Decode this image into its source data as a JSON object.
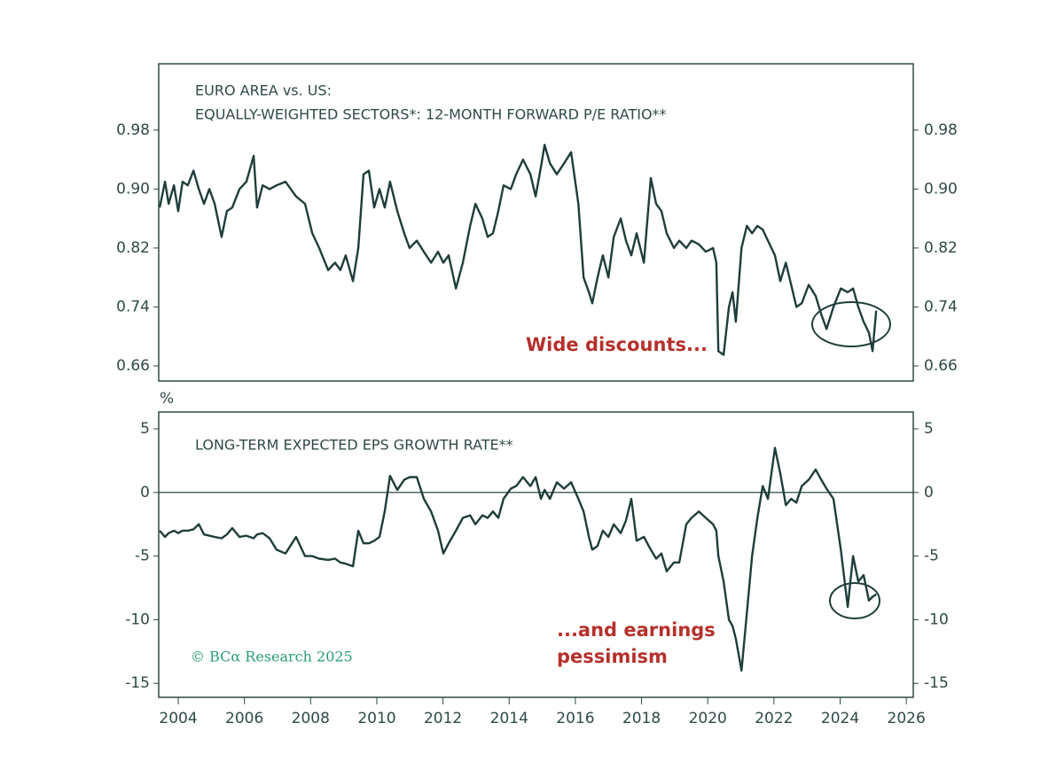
{
  "chart_data": [
    {
      "type": "line",
      "title": [
        "EURO AREA vs. US:",
        "EQUALLY-WEIGHTED SECTORS*: 12-MONTH FORWARD P/E RATIO**"
      ],
      "annotations": [
        "Wide discounts..."
      ],
      "x": [
        2003.44,
        2003.6,
        2003.71,
        2003.87,
        2004.0,
        2004.13,
        2004.29,
        2004.46,
        2004.62,
        2004.78,
        2004.94,
        2005.1,
        2005.31,
        2005.47,
        2005.63,
        2005.85,
        2006.06,
        2006.28,
        2006.38,
        2006.55,
        2006.76,
        2006.97,
        2007.24,
        2007.56,
        2007.83,
        2008.05,
        2008.26,
        2008.53,
        2008.74,
        2008.9,
        2009.06,
        2009.28,
        2009.44,
        2009.6,
        2009.76,
        2009.92,
        2010.08,
        2010.24,
        2010.4,
        2010.62,
        2010.83,
        2010.99,
        2011.21,
        2011.42,
        2011.64,
        2011.85,
        2012.01,
        2012.17,
        2012.39,
        2012.6,
        2012.82,
        2012.98,
        2013.19,
        2013.35,
        2013.51,
        2013.67,
        2013.83,
        2014.05,
        2014.21,
        2014.42,
        2014.64,
        2014.8,
        2014.96,
        2015.07,
        2015.23,
        2015.44,
        2015.66,
        2015.87,
        2016.09,
        2016.25,
        2016.41,
        2016.51,
        2016.67,
        2016.83,
        2017.0,
        2017.16,
        2017.37,
        2017.53,
        2017.69,
        2017.85,
        2018.07,
        2018.28,
        2018.44,
        2018.6,
        2018.76,
        2018.98,
        2019.14,
        2019.35,
        2019.51,
        2019.73,
        2019.94,
        2020.16,
        2020.26,
        2020.32,
        2020.48,
        2020.64,
        2020.75,
        2020.85,
        2021.02,
        2021.18,
        2021.34,
        2021.5,
        2021.66,
        2021.82,
        2022.03,
        2022.19,
        2022.36,
        2022.52,
        2022.68,
        2022.84,
        2023.05,
        2023.26,
        2023.43,
        2023.59,
        2023.8,
        2024.02,
        2024.23,
        2024.39,
        2024.55,
        2024.71,
        2024.87,
        2024.98,
        2025.09
      ],
      "series": [
        {
          "color": "#1f3d3a",
          "values": [
            0.875,
            0.91,
            0.88,
            0.905,
            0.87,
            0.91,
            0.905,
            0.925,
            0.9,
            0.88,
            0.9,
            0.88,
            0.835,
            0.87,
            0.875,
            0.9,
            0.91,
            0.945,
            0.875,
            0.905,
            0.9,
            0.905,
            0.91,
            0.89,
            0.88,
            0.84,
            0.82,
            0.79,
            0.8,
            0.79,
            0.81,
            0.775,
            0.82,
            0.92,
            0.925,
            0.875,
            0.9,
            0.875,
            0.91,
            0.87,
            0.84,
            0.82,
            0.83,
            0.815,
            0.8,
            0.815,
            0.8,
            0.81,
            0.765,
            0.8,
            0.85,
            0.88,
            0.86,
            0.835,
            0.84,
            0.87,
            0.905,
            0.9,
            0.92,
            0.94,
            0.92,
            0.89,
            0.93,
            0.96,
            0.935,
            0.92,
            0.935,
            0.95,
            0.88,
            0.78,
            0.76,
            0.745,
            0.78,
            0.81,
            0.78,
            0.835,
            0.86,
            0.83,
            0.81,
            0.84,
            0.8,
            0.915,
            0.88,
            0.87,
            0.84,
            0.82,
            0.83,
            0.82,
            0.83,
            0.825,
            0.815,
            0.82,
            0.8,
            0.68,
            0.675,
            0.74,
            0.76,
            0.72,
            0.82,
            0.85,
            0.84,
            0.85,
            0.845,
            0.83,
            0.81,
            0.775,
            0.8,
            0.77,
            0.74,
            0.745,
            0.77,
            0.755,
            0.73,
            0.71,
            0.74,
            0.765,
            0.76,
            0.765,
            0.74,
            0.72,
            0.705,
            0.68,
            0.735
          ]
        }
      ],
      "xlim": [
        2003.41,
        2026.21
      ],
      "ylim": [
        0.6395,
        1.07
      ],
      "yticks": [
        0.66,
        0.74,
        0.82,
        {
          "value": 0.9,
          "label": "0.90"
        },
        0.98
      ]
    },
    {
      "type": "line",
      "title": [
        "LONG-TERM EXPECTED EPS GROWTH RATE**"
      ],
      "y_unit": "%",
      "annotations": [
        "...and earnings",
        "pessimism"
      ],
      "hline": 0,
      "x": [
        2003.44,
        2003.6,
        2003.71,
        2003.87,
        2004.0,
        2004.13,
        2004.29,
        2004.46,
        2004.62,
        2004.78,
        2004.94,
        2005.1,
        2005.31,
        2005.47,
        2005.63,
        2005.85,
        2006.06,
        2006.28,
        2006.38,
        2006.55,
        2006.76,
        2006.97,
        2007.24,
        2007.56,
        2007.83,
        2008.05,
        2008.26,
        2008.53,
        2008.74,
        2008.9,
        2009.06,
        2009.28,
        2009.44,
        2009.6,
        2009.76,
        2009.92,
        2010.08,
        2010.24,
        2010.4,
        2010.62,
        2010.83,
        2010.99,
        2011.21,
        2011.42,
        2011.64,
        2011.85,
        2012.01,
        2012.17,
        2012.39,
        2012.6,
        2012.82,
        2012.98,
        2013.19,
        2013.35,
        2013.51,
        2013.67,
        2013.83,
        2014.05,
        2014.21,
        2014.42,
        2014.64,
        2014.8,
        2014.96,
        2015.07,
        2015.23,
        2015.44,
        2015.66,
        2015.87,
        2016.09,
        2016.25,
        2016.41,
        2016.51,
        2016.67,
        2016.83,
        2017.0,
        2017.16,
        2017.37,
        2017.53,
        2017.69,
        2017.85,
        2018.07,
        2018.28,
        2018.44,
        2018.6,
        2018.76,
        2018.98,
        2019.14,
        2019.35,
        2019.51,
        2019.73,
        2019.94,
        2020.16,
        2020.26,
        2020.32,
        2020.48,
        2020.64,
        2020.75,
        2020.85,
        2021.02,
        2021.18,
        2021.34,
        2021.5,
        2021.66,
        2021.82,
        2022.03,
        2022.19,
        2022.36,
        2022.52,
        2022.68,
        2022.84,
        2023.05,
        2023.26,
        2023.43,
        2023.59,
        2023.8,
        2024.02,
        2024.23,
        2024.39,
        2024.55,
        2024.71,
        2024.87,
        2024.98,
        2025.09
      ],
      "series": [
        {
          "color": "#1f3d3a",
          "values": [
            -3.0,
            -3.5,
            -3.2,
            -3.0,
            -3.2,
            -3.0,
            -3.0,
            -2.9,
            -2.5,
            -3.3,
            -3.4,
            -3.5,
            -3.6,
            -3.3,
            -2.8,
            -3.5,
            -3.4,
            -3.6,
            -3.3,
            -3.2,
            -3.6,
            -4.5,
            -4.8,
            -3.5,
            -5.0,
            -5.0,
            -5.2,
            -5.3,
            -5.2,
            -5.5,
            -5.6,
            -5.8,
            -3.0,
            -4.0,
            -4.0,
            -3.8,
            -3.5,
            -1.5,
            1.3,
            0.2,
            1.0,
            1.2,
            1.2,
            -0.5,
            -1.5,
            -3.0,
            -4.8,
            -4.0,
            -3.0,
            -2.0,
            -1.8,
            -2.5,
            -1.8,
            -2.0,
            -1.5,
            -2.0,
            -0.5,
            0.3,
            0.5,
            1.2,
            0.5,
            1.2,
            -0.5,
            0.2,
            -0.5,
            0.8,
            0.3,
            0.8,
            -0.5,
            -1.5,
            -3.5,
            -4.5,
            -4.2,
            -3.0,
            -3.5,
            -2.5,
            -3.2,
            -2.2,
            -0.5,
            -3.8,
            -3.5,
            -4.5,
            -5.2,
            -4.8,
            -6.2,
            -5.5,
            -5.5,
            -2.5,
            -2.0,
            -1.5,
            -2.0,
            -2.5,
            -3.0,
            -5.0,
            -7.0,
            -10.0,
            -10.5,
            -11.5,
            -14.0,
            -9.5,
            -5.0,
            -2.0,
            0.5,
            -0.5,
            3.5,
            1.5,
            -1.0,
            -0.5,
            -0.8,
            0.5,
            1.0,
            1.8,
            1.0,
            0.3,
            -0.5,
            -4.5,
            -9.0,
            -5.0,
            -7.0,
            -6.5,
            -8.5,
            -8.2,
            -8.0
          ]
        }
      ],
      "xlim": [
        2003.41,
        2026.21
      ],
      "ylim": [
        -16.1,
        6.32
      ],
      "yticks": [
        -15,
        -10,
        -5,
        0,
        5
      ],
      "xticks": [
        2004,
        2006,
        2008,
        2010,
        2012,
        2014,
        2016,
        2018,
        2020,
        2022,
        2024,
        2026
      ]
    }
  ],
  "credit": "© BCα Research 2025"
}
